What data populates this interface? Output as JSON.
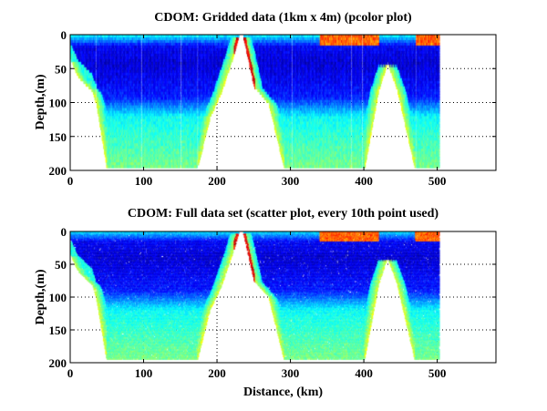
{
  "chart_data": [
    {
      "type": "heatmap",
      "title": "CDOM: Gridded data (1km x 4m) (pcolor plot)",
      "xlabel": "",
      "ylabel": "Depth,(m)",
      "xlim": [
        0,
        580
      ],
      "ylim": [
        0,
        200
      ],
      "y_reversed": true,
      "xticks": [
        0,
        100,
        200,
        300,
        400,
        500
      ],
      "yticks": [
        0,
        50,
        100,
        150,
        200
      ],
      "grid": true,
      "colormap": "jet",
      "cell_size": {
        "x_km": 1,
        "y_m": 4
      },
      "bottom_profile": {
        "distance": [
          0,
          10,
          30,
          35,
          50,
          172,
          190,
          205,
          222,
          230,
          235,
          250,
          270,
          292,
          400,
          420,
          432,
          445,
          470,
          502
        ],
        "depth": [
          35,
          60,
          82,
          100,
          200,
          200,
          120,
          85,
          30,
          0,
          0,
          75,
          100,
          200,
          200,
          80,
          40,
          80,
          200,
          200
        ]
      },
      "typical_profile": {
        "depth": [
          0,
          15,
          40,
          90,
          120,
          200
        ],
        "level": [
          0.35,
          0.12,
          0.08,
          0.15,
          0.38,
          0.5
        ]
      },
      "high_surface_ranges": [
        [
          340,
          420
        ],
        [
          470,
          502
        ]
      ]
    },
    {
      "type": "scatter",
      "title": "CDOM: Full data set (scatter plot, every 10th point used)",
      "xlabel": "Distance, (km)",
      "ylabel": "Depth,(m)",
      "xlim": [
        0,
        580
      ],
      "ylim": [
        0,
        200
      ],
      "y_reversed": true,
      "xticks": [
        0,
        100,
        200,
        300,
        400,
        500
      ],
      "yticks": [
        0,
        50,
        100,
        150,
        200
      ],
      "grid": true,
      "colormap": "jet"
    }
  ]
}
